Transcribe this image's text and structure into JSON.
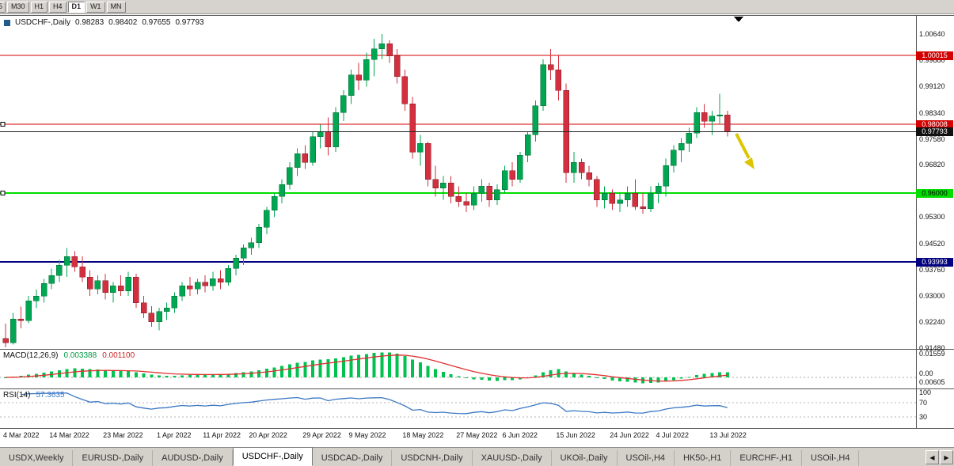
{
  "toolbar": {
    "periods": [
      {
        "label": "5",
        "active": false
      },
      {
        "label": "M30",
        "active": false
      },
      {
        "label": "H1",
        "active": false
      },
      {
        "label": "H4",
        "active": false
      },
      {
        "label": "D1",
        "active": true
      },
      {
        "label": "W1",
        "active": false
      },
      {
        "label": "MN",
        "active": false
      }
    ]
  },
  "chart": {
    "symbol_label": "USDCHF-,Daily",
    "ohlc": {
      "open": "0.98283",
      "high": "0.98402",
      "low": "0.97655",
      "close": "0.97793"
    },
    "current_price": {
      "price": 0.97793,
      "badge": "0.97793",
      "color": "#222222"
    },
    "hlines": [
      {
        "price": 1.00015,
        "badge": "1.00015",
        "color": "#d40000",
        "width": 1,
        "badge_text": "#ffffff",
        "handle": false
      },
      {
        "price": 0.98008,
        "badge": "0.98008",
        "color": "#d40000",
        "width": 1,
        "badge_text": "#ffffff",
        "handle": true
      },
      {
        "price": 0.96,
        "badge": "0.96000",
        "color": "#00dd00",
        "width": 2,
        "badge_text": "#000000",
        "handle": true
      },
      {
        "price": 0.93993,
        "badge": "0.93993",
        "color": "#000080",
        "width": 2,
        "badge_text": "#ffffff",
        "handle": false
      }
    ],
    "price_axis_labels": [
      1.0064,
      0.9988,
      0.9912,
      0.9834,
      0.9758,
      0.9682,
      0.953,
      0.9452,
      0.9376,
      0.93,
      0.9224,
      0.9148
    ]
  },
  "chart_data": {
    "type": "candlestick",
    "symbol": "USDCHF",
    "period": "Daily",
    "price_range": [
      0.9148,
      1.0064
    ],
    "candles": [
      [
        0.9176,
        0.9219,
        0.915,
        0.9163
      ],
      [
        0.9163,
        0.925,
        0.9158,
        0.9233
      ],
      [
        0.9233,
        0.9269,
        0.9205,
        0.9228
      ],
      [
        0.9228,
        0.93,
        0.9221,
        0.9286
      ],
      [
        0.9286,
        0.9319,
        0.9264,
        0.93
      ],
      [
        0.93,
        0.935,
        0.928,
        0.9336
      ],
      [
        0.9336,
        0.938,
        0.932,
        0.936
      ],
      [
        0.936,
        0.9405,
        0.934,
        0.939
      ],
      [
        0.939,
        0.944,
        0.9355,
        0.9415
      ],
      [
        0.9415,
        0.943,
        0.937,
        0.9385
      ],
      [
        0.9385,
        0.9415,
        0.934,
        0.9355
      ],
      [
        0.9355,
        0.9375,
        0.93,
        0.932
      ],
      [
        0.932,
        0.936,
        0.9305,
        0.9345
      ],
      [
        0.9345,
        0.9365,
        0.929,
        0.931
      ],
      [
        0.931,
        0.934,
        0.928,
        0.933
      ],
      [
        0.933,
        0.936,
        0.93,
        0.9315
      ],
      [
        0.9315,
        0.937,
        0.93,
        0.9355
      ],
      [
        0.9355,
        0.9365,
        0.9265,
        0.928
      ],
      [
        0.928,
        0.93,
        0.9235,
        0.925
      ],
      [
        0.925,
        0.927,
        0.921,
        0.9225
      ],
      [
        0.9225,
        0.9265,
        0.92,
        0.9255
      ],
      [
        0.9255,
        0.928,
        0.923,
        0.9265
      ],
      [
        0.9265,
        0.931,
        0.925,
        0.93
      ],
      [
        0.93,
        0.934,
        0.9285,
        0.933
      ],
      [
        0.933,
        0.9355,
        0.93,
        0.932
      ],
      [
        0.932,
        0.935,
        0.9305,
        0.934
      ],
      [
        0.934,
        0.936,
        0.931,
        0.933
      ],
      [
        0.933,
        0.937,
        0.9315,
        0.935
      ],
      [
        0.935,
        0.9375,
        0.932,
        0.934
      ],
      [
        0.934,
        0.939,
        0.933,
        0.938
      ],
      [
        0.938,
        0.942,
        0.936,
        0.941
      ],
      [
        0.941,
        0.945,
        0.939,
        0.944
      ],
      [
        0.944,
        0.947,
        0.942,
        0.9455
      ],
      [
        0.9455,
        0.951,
        0.944,
        0.95
      ],
      [
        0.95,
        0.956,
        0.948,
        0.955
      ],
      [
        0.955,
        0.96,
        0.953,
        0.959
      ],
      [
        0.959,
        0.964,
        0.957,
        0.9625
      ],
      [
        0.9625,
        0.969,
        0.961,
        0.9675
      ],
      [
        0.9675,
        0.973,
        0.965,
        0.9715
      ],
      [
        0.9715,
        0.974,
        0.967,
        0.969
      ],
      [
        0.969,
        0.978,
        0.968,
        0.9765
      ],
      [
        0.9765,
        0.98,
        0.973,
        0.978
      ],
      [
        0.978,
        0.982,
        0.971,
        0.9735
      ],
      [
        0.9735,
        0.985,
        0.972,
        0.9835
      ],
      [
        0.9835,
        0.99,
        0.981,
        0.9885
      ],
      [
        0.9885,
        0.996,
        0.986,
        0.9945
      ],
      [
        0.9945,
        0.998,
        0.99,
        0.993
      ],
      [
        0.993,
        1.001,
        0.991,
        0.999
      ],
      [
        0.999,
        1.005,
        0.994,
        1.002
      ],
      [
        1.002,
        1.0064,
        0.999,
        1.0035
      ],
      [
        1.0035,
        1.0045,
        0.998,
        1.0
      ],
      [
        1.0,
        1.002,
        0.992,
        0.994
      ],
      [
        0.994,
        0.996,
        0.984,
        0.986
      ],
      [
        0.986,
        0.988,
        0.97,
        0.972
      ],
      [
        0.972,
        0.977,
        0.968,
        0.9745
      ],
      [
        0.9745,
        0.975,
        0.962,
        0.964
      ],
      [
        0.964,
        0.968,
        0.959,
        0.9615
      ],
      [
        0.9615,
        0.965,
        0.958,
        0.963
      ],
      [
        0.963,
        0.965,
        0.957,
        0.959
      ],
      [
        0.959,
        0.962,
        0.956,
        0.9575
      ],
      [
        0.9575,
        0.96,
        0.9545,
        0.9565
      ],
      [
        0.9565,
        0.962,
        0.955,
        0.96
      ],
      [
        0.96,
        0.964,
        0.9575,
        0.962
      ],
      [
        0.962,
        0.963,
        0.956,
        0.958
      ],
      [
        0.958,
        0.9625,
        0.9565,
        0.961
      ],
      [
        0.961,
        0.968,
        0.96,
        0.9665
      ],
      [
        0.9665,
        0.969,
        0.962,
        0.964
      ],
      [
        0.964,
        0.972,
        0.963,
        0.971
      ],
      [
        0.971,
        0.978,
        0.969,
        0.977
      ],
      [
        0.977,
        0.987,
        0.975,
        0.9855
      ],
      [
        0.9855,
        0.999,
        0.984,
        0.9975
      ],
      [
        0.9975,
        1.002,
        0.993,
        0.996
      ],
      [
        0.996,
        1.0,
        0.987,
        0.99
      ],
      [
        0.99,
        0.992,
        0.963,
        0.966
      ],
      [
        0.966,
        0.972,
        0.963,
        0.969
      ],
      [
        0.969,
        0.97,
        0.964,
        0.966
      ],
      [
        0.966,
        0.968,
        0.962,
        0.964
      ],
      [
        0.964,
        0.965,
        0.956,
        0.958
      ],
      [
        0.958,
        0.962,
        0.9555,
        0.96
      ],
      [
        0.96,
        0.961,
        0.955,
        0.957
      ],
      [
        0.957,
        0.96,
        0.9545,
        0.958
      ],
      [
        0.958,
        0.962,
        0.956,
        0.96
      ],
      [
        0.96,
        0.964,
        0.955,
        0.956
      ],
      [
        0.956,
        0.96,
        0.954,
        0.9555
      ],
      [
        0.9555,
        0.962,
        0.9545,
        0.96
      ],
      [
        0.96,
        0.963,
        0.957,
        0.962
      ],
      [
        0.962,
        0.97,
        0.959,
        0.968
      ],
      [
        0.968,
        0.974,
        0.966,
        0.9725
      ],
      [
        0.9725,
        0.976,
        0.969,
        0.9745
      ],
      [
        0.9745,
        0.979,
        0.972,
        0.9775
      ],
      [
        0.9775,
        0.985,
        0.976,
        0.9835
      ],
      [
        0.9835,
        0.986,
        0.979,
        0.981
      ],
      [
        0.981,
        0.984,
        0.977,
        0.9825
      ],
      [
        0.9825,
        0.989,
        0.98,
        0.9828
      ],
      [
        0.98283,
        0.98402,
        0.97655,
        0.97793
      ]
    ],
    "x_labels": [
      {
        "label": "4 Mar 2022",
        "i": 0
      },
      {
        "label": "14 Mar 2022",
        "i": 6
      },
      {
        "label": "23 Mar 2022",
        "i": 13
      },
      {
        "label": "1 Apr 2022",
        "i": 20
      },
      {
        "label": "11 Apr 2022",
        "i": 26
      },
      {
        "label": "20 Apr 2022",
        "i": 32
      },
      {
        "label": "29 Apr 2022",
        "i": 39
      },
      {
        "label": "9 May 2022",
        "i": 45
      },
      {
        "label": "18 May 2022",
        "i": 52
      },
      {
        "label": "27 May 2022",
        "i": 59
      },
      {
        "label": "6 Jun 2022",
        "i": 65
      },
      {
        "label": "15 Jun 2022",
        "i": 72
      },
      {
        "label": "24 Jun 2022",
        "i": 79
      },
      {
        "label": "4 Jul 2022",
        "i": 85
      },
      {
        "label": "13 Jul 2022",
        "i": 92
      }
    ]
  },
  "macd": {
    "name": "MACD(12,26,9)",
    "value_main": "0.003388",
    "value_signal": "0.001100",
    "axis_labels": [
      "0.01559",
      "0.00",
      "0.00605"
    ]
  },
  "rsi": {
    "name": "RSI(14)",
    "value": "57.3635",
    "axis_labels": [
      "100",
      "70",
      "30"
    ],
    "levels": [
      70,
      30
    ]
  },
  "objects": {
    "down_triangle_marker": {
      "name": "black-down-triangle",
      "color": "#000000"
    },
    "trend_arrow": {
      "name": "yellow-down-right-arrow",
      "color": "#ddc500"
    }
  },
  "tabs": {
    "items": [
      {
        "label": "USDX,Weekly",
        "active": false
      },
      {
        "label": "EURUSD-,Daily",
        "active": false
      },
      {
        "label": "AUDUSD-,Daily",
        "active": false
      },
      {
        "label": "USDCHF-,Daily",
        "active": true
      },
      {
        "label": "USDCAD-,Daily",
        "active": false
      },
      {
        "label": "USDCNH-,Daily",
        "active": false
      },
      {
        "label": "XAUUSD-,Daily",
        "active": false
      },
      {
        "label": "UKOil-,Daily",
        "active": false
      },
      {
        "label": "USOil-,H4",
        "active": false
      },
      {
        "label": "HK50-,H1",
        "active": false
      },
      {
        "label": "EURCHF-,H1",
        "active": false
      },
      {
        "label": "USOil-,H4",
        "active": false
      }
    ],
    "scroll_left_icon": "◀",
    "scroll_right_icon": "▶"
  },
  "colors": {
    "up": "#00a651",
    "down": "#d22f3f",
    "macd_hist": "#00c24e",
    "macd_signal": "#e03030",
    "rsi_line": "#3b78c4",
    "yellow_arrow": "#ddc500",
    "marker": "#000000"
  }
}
